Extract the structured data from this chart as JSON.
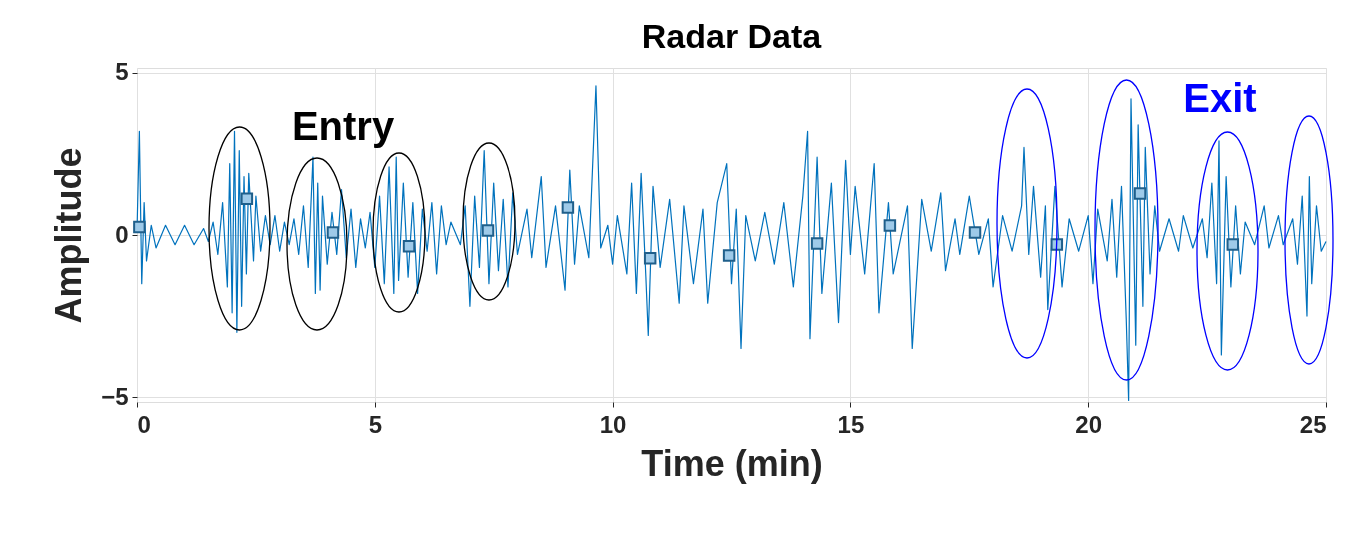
{
  "chart_data": {
    "type": "line",
    "title": "Radar Data",
    "xlabel": "Time (min)",
    "ylabel": "Amplitude",
    "xlim": [
      0,
      25
    ],
    "xticks": [
      0,
      5,
      10,
      15,
      20,
      25
    ],
    "ylim": [
      -5.15,
      5.15
    ],
    "yticks": [
      -5,
      0,
      5
    ],
    "grid": true,
    "series": [
      {
        "type": "line",
        "color": "#0072bd",
        "marker": "none",
        "x": [
          0,
          0.05,
          0.1,
          0.15,
          0.2,
          0.3,
          0.4,
          0.6,
          0.8,
          1.0,
          1.2,
          1.4,
          1.5,
          1.6,
          1.7,
          1.8,
          1.9,
          1.95,
          2.0,
          2.05,
          2.1,
          2.15,
          2.2,
          2.25,
          2.3,
          2.35,
          2.45,
          2.5,
          2.6,
          2.7,
          2.8,
          2.9,
          3.0,
          3.1,
          3.2,
          3.3,
          3.4,
          3.5,
          3.6,
          3.7,
          3.75,
          3.8,
          3.85,
          3.9,
          4.0,
          4.1,
          4.2,
          4.3,
          4.4,
          4.5,
          4.6,
          4.7,
          4.8,
          4.9,
          5.0,
          5.1,
          5.2,
          5.3,
          5.4,
          5.45,
          5.5,
          5.6,
          5.7,
          5.8,
          5.9,
          6.0,
          6.1,
          6.2,
          6.3,
          6.4,
          6.5,
          6.6,
          6.8,
          6.9,
          7.0,
          7.1,
          7.2,
          7.3,
          7.4,
          7.5,
          7.6,
          7.7,
          7.8,
          7.9,
          8.0,
          8.2,
          8.3,
          8.5,
          8.6,
          8.8,
          9.0,
          9.1,
          9.2,
          9.3,
          9.5,
          9.65,
          9.75,
          9.9,
          10.0,
          10.1,
          10.3,
          10.4,
          10.5,
          10.6,
          10.7,
          10.75,
          10.85,
          11.0,
          11.2,
          11.4,
          11.5,
          11.7,
          11.9,
          12.0,
          12.2,
          12.4,
          12.5,
          12.6,
          12.7,
          12.8,
          13.0,
          13.2,
          13.4,
          13.6,
          13.8,
          14.0,
          14.1,
          14.15,
          14.3,
          14.4,
          14.6,
          14.75,
          14.9,
          15.0,
          15.1,
          15.3,
          15.5,
          15.6,
          15.8,
          15.9,
          16.2,
          16.3,
          16.5,
          16.7,
          16.9,
          17.0,
          17.2,
          17.3,
          17.5,
          17.7,
          17.9,
          18.0,
          18.2,
          18.4,
          18.6,
          18.65,
          18.75,
          18.85,
          19.0,
          19.1,
          19.15,
          19.3,
          19.45,
          19.6,
          19.8,
          20.0,
          20.1,
          20.2,
          20.4,
          20.5,
          20.6,
          20.7,
          20.8,
          20.85,
          20.9,
          21.0,
          21.05,
          21.15,
          21.2,
          21.3,
          21.4,
          21.5,
          21.7,
          21.9,
          22.0,
          22.2,
          22.4,
          22.5,
          22.6,
          22.7,
          22.75,
          22.8,
          22.9,
          23.0,
          23.1,
          23.2,
          23.3,
          23.5,
          23.7,
          23.8,
          24.0,
          24.1,
          24.3,
          24.4,
          24.5,
          24.6,
          24.65,
          24.7,
          24.8,
          24.9,
          25.0
        ],
        "values": [
          0.1,
          3.2,
          -1.5,
          1.0,
          -0.8,
          0.3,
          -0.4,
          0.3,
          -0.3,
          0.3,
          -0.3,
          0.2,
          -0.2,
          0.4,
          -0.6,
          1.0,
          -1.6,
          2.2,
          -2.4,
          3.2,
          -3.0,
          2.6,
          -2.2,
          1.8,
          -1.2,
          1.9,
          -0.8,
          1.2,
          -0.5,
          0.6,
          -0.3,
          0.6,
          -0.5,
          0.4,
          -0.3,
          0.5,
          -0.6,
          0.9,
          -1.0,
          2.4,
          -1.8,
          1.6,
          -1.7,
          1.2,
          -0.9,
          0.7,
          -0.6,
          1.4,
          -0.7,
          0.8,
          -1.0,
          0.5,
          -0.4,
          0.7,
          -1.0,
          1.2,
          -1.5,
          2.1,
          -1.8,
          2.4,
          -1.4,
          1.6,
          -1.3,
          1.0,
          -1.8,
          0.8,
          -0.5,
          1.0,
          -1.2,
          0.9,
          -0.3,
          0.4,
          -0.3,
          0.9,
          -2.2,
          1.2,
          -1.0,
          2.6,
          -1.5,
          1.6,
          -1.1,
          1.1,
          -1.6,
          1.3,
          -0.6,
          0.8,
          -0.7,
          1.8,
          -1.0,
          0.9,
          -1.7,
          2.0,
          -0.9,
          0.9,
          -0.7,
          4.6,
          -0.4,
          0.3,
          -0.9,
          0.6,
          -1.2,
          1.6,
          -1.8,
          1.9,
          -1.3,
          -3.1,
          1.5,
          -1.0,
          1.1,
          -2.1,
          0.9,
          -1.5,
          0.8,
          -2.1,
          1.0,
          2.2,
          -1.5,
          0.8,
          -3.5,
          0.6,
          -0.8,
          0.7,
          -0.9,
          1.0,
          -1.6,
          1.2,
          3.2,
          -3.2,
          2.4,
          -1.8,
          1.6,
          -2.7,
          2.3,
          -0.6,
          1.5,
          -1.2,
          2.2,
          -2.4,
          1.0,
          -1.2,
          0.9,
          -3.5,
          1.1,
          -0.5,
          1.3,
          -1.1,
          0.5,
          -0.6,
          1.2,
          -0.6,
          0.5,
          -1.6,
          0.6,
          -0.5,
          0.9,
          2.7,
          -0.6,
          1.5,
          -1.3,
          0.9,
          -2.3,
          1.5,
          -1.6,
          0.5,
          -0.5,
          0.6,
          -1.5,
          0.8,
          -0.8,
          1.1,
          -1.3,
          1.5,
          -2.6,
          -5.1,
          4.2,
          -3.4,
          3.4,
          -2.2,
          2.7,
          -1.2,
          0.9,
          -0.5,
          0.5,
          -0.5,
          0.6,
          -0.4,
          0.5,
          -0.7,
          1.6,
          -1.5,
          2.9,
          -3.7,
          1.8,
          -1.6,
          0.9,
          -1.2,
          0.4,
          -0.3,
          0.9,
          -0.4,
          0.6,
          -0.3,
          0.5,
          -0.9,
          1.2,
          -2.5,
          1.8,
          -1.5,
          0.9,
          -0.5,
          -0.2
        ]
      },
      {
        "type": "scatter",
        "color": "#9ecae9",
        "marker": "square",
        "x": [
          0.05,
          2.31,
          4.12,
          5.72,
          7.38,
          9.06,
          10.79,
          12.45,
          14.3,
          15.83,
          17.62,
          19.34,
          21.09,
          23.04
        ],
        "values": [
          0.25,
          1.12,
          0.08,
          -0.35,
          0.14,
          0.85,
          -0.72,
          -0.63,
          -0.26,
          0.29,
          0.08,
          -0.29,
          1.28,
          -0.29
        ]
      }
    ],
    "annotations": [
      "Entry",
      "Exit"
    ]
  }
}
